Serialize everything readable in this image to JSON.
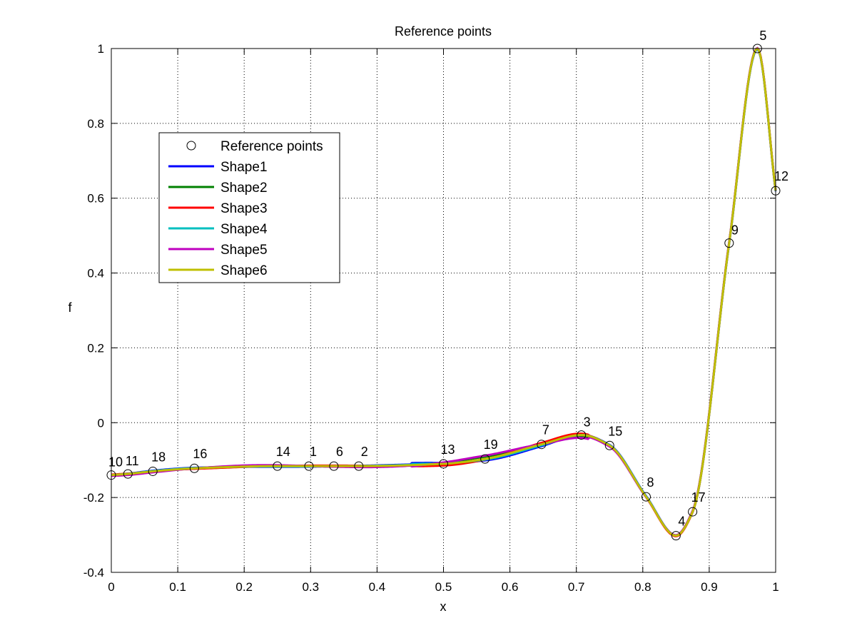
{
  "chart_data": {
    "type": "line",
    "title": "Reference points",
    "xlabel": "x",
    "ylabel": "f",
    "xlim": [
      0,
      1
    ],
    "ylim": [
      -0.4,
      1
    ],
    "xticks": [
      "0",
      "0.1",
      "0.2",
      "0.3",
      "0.4",
      "0.5",
      "0.6",
      "0.7",
      "0.8",
      "0.9",
      "1"
    ],
    "yticks": [
      "-0.4",
      "-0.2",
      "0",
      "0.2",
      "0.4",
      "0.6",
      "0.8",
      "1"
    ],
    "grid": true,
    "legend_position": "upper-left",
    "reference_points": {
      "name": "Reference points",
      "points": [
        {
          "label": "10",
          "x": 0.0,
          "y": -0.14
        },
        {
          "label": "11",
          "x": 0.025,
          "y": -0.137
        },
        {
          "label": "18",
          "x": 0.0625,
          "y": -0.13
        },
        {
          "label": "16",
          "x": 0.125,
          "y": -0.122
        },
        {
          "label": "14",
          "x": 0.25,
          "y": -0.116
        },
        {
          "label": "1",
          "x": 0.2975,
          "y": -0.116
        },
        {
          "label": "6",
          "x": 0.335,
          "y": -0.116
        },
        {
          "label": "2",
          "x": 0.3725,
          "y": -0.116
        },
        {
          "label": "13",
          "x": 0.5,
          "y": -0.11
        },
        {
          "label": "19",
          "x": 0.5625,
          "y": -0.097
        },
        {
          "label": "7",
          "x": 0.6475,
          "y": -0.058
        },
        {
          "label": "3",
          "x": 0.7075,
          "y": -0.033
        },
        {
          "label": "15",
          "x": 0.75,
          "y": -0.061
        },
        {
          "label": "8",
          "x": 0.805,
          "y": -0.198
        },
        {
          "label": "4",
          "x": 0.85,
          "y": -0.302
        },
        {
          "label": "17",
          "x": 0.875,
          "y": -0.238
        },
        {
          "label": "9",
          "x": 0.93,
          "y": 0.48
        },
        {
          "label": "5",
          "x": 0.9725,
          "y": 1.0
        },
        {
          "label": "12",
          "x": 1.0,
          "y": 0.62
        }
      ]
    },
    "series": [
      {
        "name": "Shape1",
        "color": "#0000ff"
      },
      {
        "name": "Shape2",
        "color": "#008000"
      },
      {
        "name": "Shape3",
        "color": "#ff0000"
      },
      {
        "name": "Shape4",
        "color": "#00bfbf"
      },
      {
        "name": "Shape5",
        "color": "#bf00bf"
      },
      {
        "name": "Shape6",
        "color": "#bfbf00"
      }
    ]
  }
}
